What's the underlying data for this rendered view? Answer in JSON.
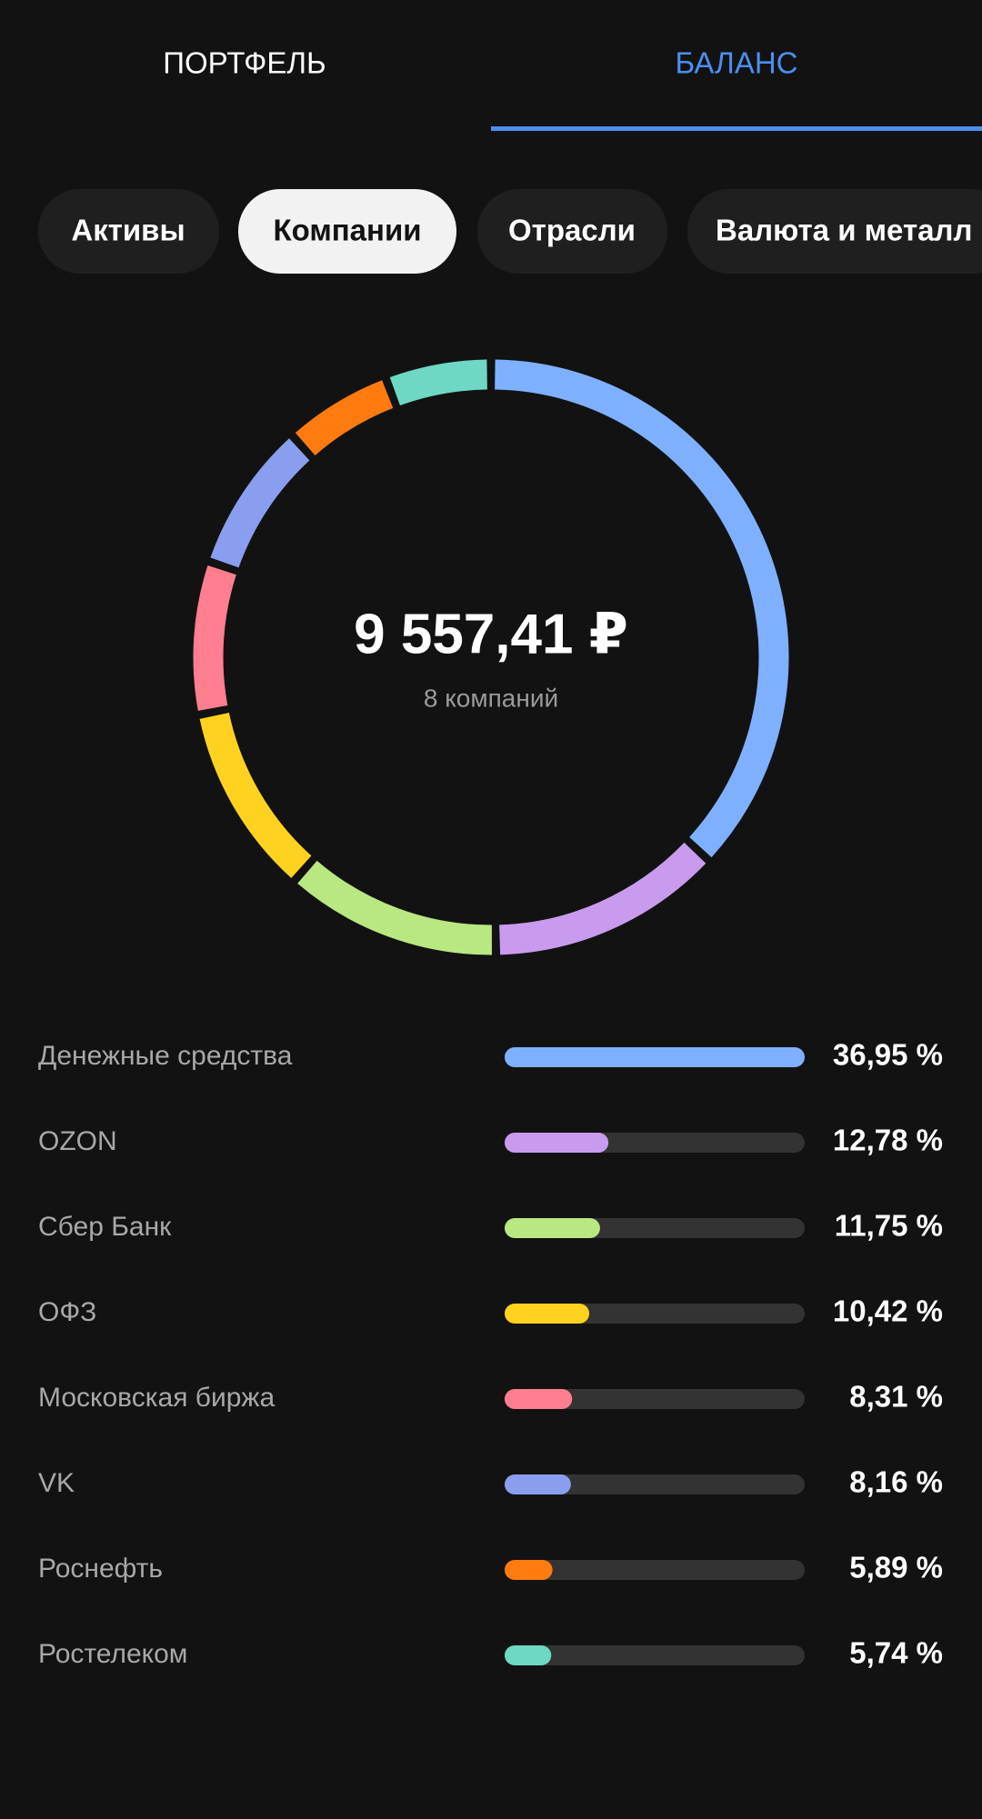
{
  "tabs": [
    "ПОРТФЕЛЬ",
    "БАЛАНС"
  ],
  "filters": [
    "Активы",
    "Компании",
    "Отрасли",
    "Валюта и металл"
  ],
  "chart_data": {
    "type": "donut",
    "total": "9 557,41 ₽",
    "subtitle": "8 компаний",
    "categories": [
      "Денежные средства",
      "OZON",
      "Сбер Банк",
      "ОФЗ",
      "Московская биржа",
      "VK",
      "Роснефть",
      "Ростелеком"
    ],
    "values": [
      36.95,
      12.78,
      11.75,
      10.42,
      8.31,
      8.16,
      5.89,
      5.74
    ],
    "value_labels": [
      "36,95 %",
      "12,78 %",
      "11,75 %",
      "10,42 %",
      "8,31 %",
      "8,16 %",
      "5,89 %",
      "5,74 %"
    ],
    "colors": [
      "#7fb0ff",
      "#c99bef",
      "#b9e882",
      "#ffd21f",
      "#ff7e8f",
      "#8a9ef0",
      "#ff7b0f",
      "#6ed8c4"
    ]
  }
}
